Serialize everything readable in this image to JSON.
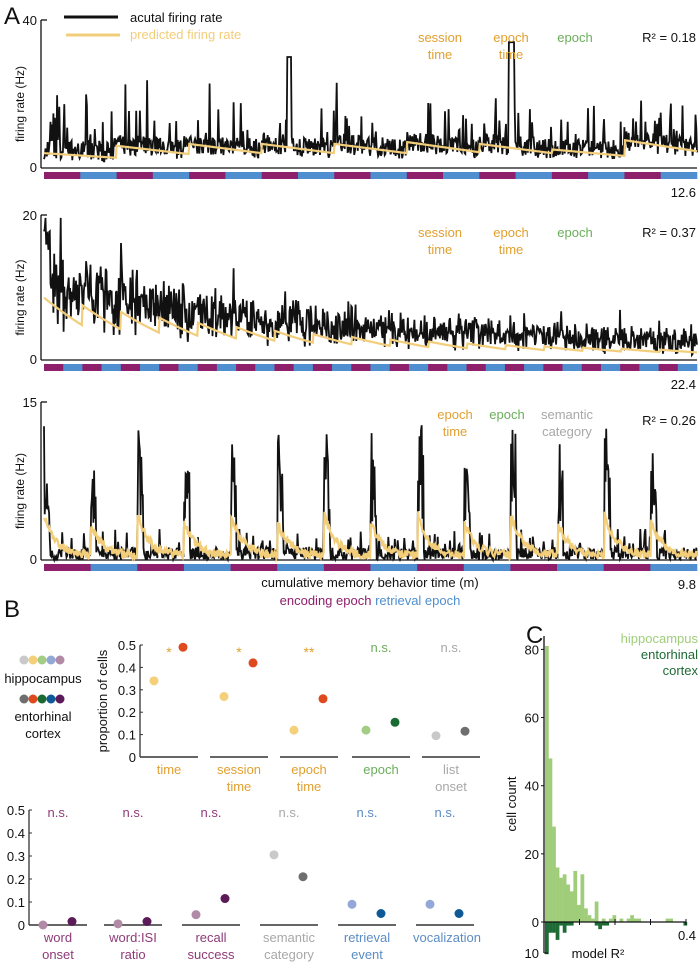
{
  "colors": {
    "actual": "#111111",
    "predicted": "#f2cd7a",
    "encoding": "#8e1f6b",
    "retrieval": "#4f8fcf",
    "orange_label": "#e0a030",
    "green_label": "#6aae5a",
    "gray_label": "#a8a8a8",
    "purple_label": "#8e3b78",
    "blue_label": "#5b8cc4",
    "hist_hpc": "#9fcd7a",
    "hist_ec": "#1d6b35"
  },
  "chart_data": [
    {
      "id": "A1",
      "type": "line",
      "panel_label": "A",
      "ylabel": "firing rate (Hz)",
      "ylim": [
        0,
        40
      ],
      "yticks": [
        "0",
        "40"
      ],
      "legend": [
        {
          "name": "acutal firing rate",
          "color": "#111111"
        },
        {
          "name": "predicted firing rate",
          "color": "#f2cd7a"
        }
      ],
      "legend_placement": "top-left",
      "predictors": [
        {
          "line1": "session",
          "line2": "time",
          "color": "#e0a030"
        },
        {
          "line1": "epoch",
          "line2": "time",
          "color": "#e0a030"
        },
        {
          "line1": "epoch",
          "line2": "",
          "color": "#6aae5a"
        }
      ],
      "r2_label": "R² = 0.18",
      "xmax_label": "12.6",
      "epochs": 18,
      "series": [
        {
          "name": "acutal firing rate",
          "description": "noisy baseline ~3-8 Hz with spikes up to ~34 Hz near epoch 13"
        },
        {
          "name": "predicted firing rate",
          "description": "sawtooth, jumps at each encoding epoch onset, rising trend 2 to 9 Hz",
          "peaks": [
            2.5,
            4.5,
            5,
            5,
            5,
            5.5,
            5,
            3.5,
            6,
            10,
            9,
            10,
            9
          ]
        }
      ]
    },
    {
      "id": "A2",
      "type": "line",
      "ylabel": "firing rate (Hz)",
      "ylim": [
        0,
        20
      ],
      "yticks": [
        "0",
        "20"
      ],
      "predictors": [
        {
          "line1": "session",
          "line2": "time",
          "color": "#e0a030"
        },
        {
          "line1": "epoch",
          "line2": "time",
          "color": "#e0a030"
        },
        {
          "line1": "epoch",
          "line2": "",
          "color": "#6aae5a"
        }
      ],
      "r2_label": "R² = 0.37",
      "xmax_label": "22.4",
      "epochs": 34,
      "series": [
        {
          "name": "acutal firing rate",
          "description": "high variance early (up to ~20 Hz), decaying over session to ~2-5 Hz"
        },
        {
          "name": "predicted firing rate",
          "description": "sawtooth decaying from ~8 Hz to ~1 Hz"
        }
      ]
    },
    {
      "id": "A3",
      "type": "line",
      "ylabel": "firing rate (Hz)",
      "ylim": [
        0,
        15
      ],
      "yticks": [
        "0",
        "15"
      ],
      "predictors": [
        {
          "line1": "epoch",
          "line2": "time",
          "color": "#e0a030"
        },
        {
          "line1": "epoch",
          "line2": "",
          "color": "#6aae5a"
        },
        {
          "line1": "semantic",
          "line2": "category",
          "color": "#a8a8a8"
        }
      ],
      "r2_label": "R² = 0.26",
      "xlabel": "cumulative memory behavior time (m)",
      "xmax_label": "9.8",
      "epochs": 14,
      "epoch_legend": [
        {
          "label": "encoding epoch",
          "color": "#8e1f6b"
        },
        {
          "label": "retrieval epoch",
          "color": "#4f8fcf"
        }
      ],
      "series": [
        {
          "name": "acutal firing rate",
          "description": "bursts up to ~13 Hz at start of each epoch, near 0 otherwise"
        },
        {
          "name": "predicted firing rate",
          "description": "exponential decay from ~4 Hz after each epoch onset"
        }
      ]
    },
    {
      "id": "B",
      "type": "scatter",
      "panel_label": "B",
      "ylabel": "proportion of cells",
      "ylim": [
        0,
        0.5
      ],
      "yticks": [
        "0",
        "0.1",
        "0.2",
        "0.3",
        "0.4",
        "0.5"
      ],
      "legend": {
        "hippocampus_label": "hippocampus",
        "ec_label_1": "entorhinal",
        "ec_label_2": "cortex",
        "hippocampus_colors": [
          "#c9c9c9",
          "#f5d07a",
          "#a3cc85",
          "#93a8d6",
          "#b18aa6"
        ],
        "ec_colors": [
          "#6e6e6e",
          "#de4a1e",
          "#1a6b32",
          "#0f5a96",
          "#5b1a58"
        ]
      },
      "categories": [
        {
          "line1": "time",
          "line2": "",
          "sig": "*",
          "hpc": 0.34,
          "ec": 0.49,
          "label_color": "#e0a030",
          "hpc_color": "#f5d07a",
          "ec_color": "#de4a1e",
          "row": 0
        },
        {
          "line1": "session",
          "line2": "time",
          "sig": "*",
          "hpc": 0.27,
          "ec": 0.42,
          "label_color": "#e0a030",
          "hpc_color": "#f5d07a",
          "ec_color": "#de4a1e",
          "row": 0
        },
        {
          "line1": "epoch",
          "line2": "time",
          "sig": "**",
          "hpc": 0.12,
          "ec": 0.26,
          "label_color": "#e0a030",
          "hpc_color": "#f5d07a",
          "ec_color": "#de4a1e",
          "row": 0
        },
        {
          "line1": "epoch",
          "line2": "",
          "sig": "n.s.",
          "hpc": 0.12,
          "ec": 0.155,
          "label_color": "#6aae5a",
          "hpc_color": "#a3cc85",
          "ec_color": "#1a6b32",
          "row": 0
        },
        {
          "line1": "list",
          "line2": "onset",
          "sig": "n.s.",
          "hpc": 0.095,
          "ec": 0.115,
          "label_color": "#a8a8a8",
          "hpc_color": "#c9c9c9",
          "ec_color": "#6e6e6e",
          "row": 0
        },
        {
          "line1": "word",
          "line2": "onset",
          "sig": "n.s.",
          "hpc": 0.0,
          "ec": 0.015,
          "label_color": "#8e3b78",
          "hpc_color": "#b18aa6",
          "ec_color": "#5b1a58",
          "row": 1
        },
        {
          "line1": "word:ISI",
          "line2": "ratio",
          "sig": "n.s.",
          "hpc": 0.005,
          "ec": 0.015,
          "label_color": "#8e3b78",
          "hpc_color": "#b18aa6",
          "ec_color": "#5b1a58",
          "row": 1
        },
        {
          "line1": "recall",
          "line2": "success",
          "sig": "n.s.",
          "hpc": 0.045,
          "ec": 0.115,
          "label_color": "#8e3b78",
          "hpc_color": "#b18aa6",
          "ec_color": "#5b1a58",
          "row": 1
        },
        {
          "line1": "semantic",
          "line2": "category",
          "sig": "n.s.",
          "hpc": 0.305,
          "ec": 0.21,
          "label_color": "#a8a8a8",
          "hpc_color": "#c9c9c9",
          "ec_color": "#6e6e6e",
          "row": 1
        },
        {
          "line1": "retrieval",
          "line2": "event",
          "sig": "n.s.",
          "hpc": 0.09,
          "ec": 0.05,
          "label_color": "#5b8cc4",
          "hpc_color": "#93a8d6",
          "ec_color": "#0f5a96",
          "row": 1
        },
        {
          "line1": "",
          "line2": "vocalization",
          "sig": "n.s.",
          "hpc": 0.09,
          "ec": 0.05,
          "label_color": "#5b8cc4",
          "hpc_color": "#93a8d6",
          "ec_color": "#0f5a96",
          "row": 1
        }
      ]
    },
    {
      "id": "C",
      "type": "bar",
      "panel_label": "C",
      "title": "",
      "xlabel": "model R²",
      "ylabel": "cell count",
      "xlim": [
        0,
        0.4
      ],
      "xtick_label": "0.4",
      "ylim": [
        -10,
        80
      ],
      "yticks": [
        "80",
        "60",
        "40",
        "20",
        "0",
        "10"
      ],
      "legend": [
        {
          "name": "hippocampus",
          "color": "#9fcd7a"
        },
        {
          "name": "entorhinal",
          "color": "#1d6b35"
        },
        {
          "name": "cortex",
          "color": "#1d6b35"
        }
      ],
      "legend_placement": "top-right",
      "bin_width": 0.01,
      "series": [
        {
          "name": "hippocampus",
          "values": [
            81,
            48,
            28,
            16,
            13,
            14,
            11,
            9,
            15,
            5,
            14,
            4,
            2,
            1,
            6,
            0,
            1,
            0,
            1,
            2,
            0,
            1,
            0,
            1,
            2,
            1,
            1,
            0,
            0,
            0,
            0,
            0,
            0,
            0,
            1,
            1,
            0,
            0,
            0,
            0
          ]
        },
        {
          "name": "entorhinal cortex",
          "values": [
            9,
            3,
            3,
            5,
            1,
            3,
            1,
            1,
            0,
            0,
            0,
            0,
            0,
            0,
            1,
            2,
            1,
            1,
            0,
            0,
            0,
            0,
            0,
            0,
            0,
            0,
            0,
            0,
            0,
            0,
            0,
            0,
            0,
            0,
            0,
            0,
            0,
            0,
            0,
            1
          ]
        }
      ]
    }
  ]
}
